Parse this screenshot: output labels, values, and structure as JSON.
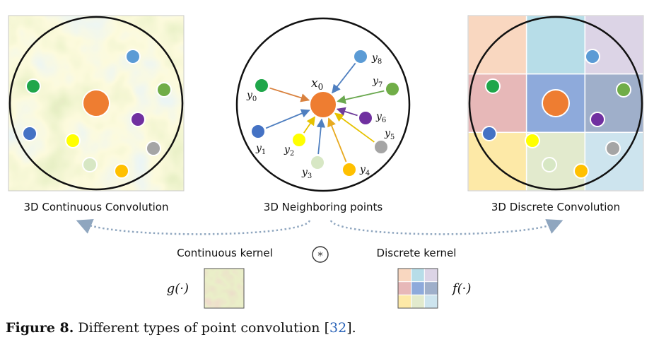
{
  "labels": {
    "continuous_conv": "3D Continuous Convolution",
    "neighboring": "3D Neighboring points",
    "discrete_conv": "3D Discrete Convolution",
    "continuous_kernel": "Continuous kernel",
    "discrete_kernel": "Discrete kernel",
    "g_func": "g(·)",
    "f_func": "f(·)",
    "conv_symbol": "*"
  },
  "center_point": {
    "label": "x",
    "sub": "0"
  },
  "neighbor_points": [
    {
      "label": "y",
      "sub": "0"
    },
    {
      "label": "y",
      "sub": "1"
    },
    {
      "label": "y",
      "sub": "2"
    },
    {
      "label": "y",
      "sub": "3"
    },
    {
      "label": "y",
      "sub": "4"
    },
    {
      "label": "y",
      "sub": "5"
    },
    {
      "label": "y",
      "sub": "6"
    },
    {
      "label": "y",
      "sub": "7"
    },
    {
      "label": "y",
      "sub": "8"
    }
  ],
  "caption": {
    "figure": "Figure 8.",
    "text": " Different types of point convolution [",
    "ref": "32",
    "end": "]."
  },
  "colors": {
    "center": "#ee7d31",
    "green": "#1fa64a",
    "blue_light": "#5b9bd5",
    "green_light": "#70ad47",
    "purple": "#7030a0",
    "blue_dark": "#4472c4",
    "yellow": "#ffff00",
    "gray": "#a5a5a5",
    "pale": "#d7e7c4",
    "orange_y": "#ffc000"
  }
}
